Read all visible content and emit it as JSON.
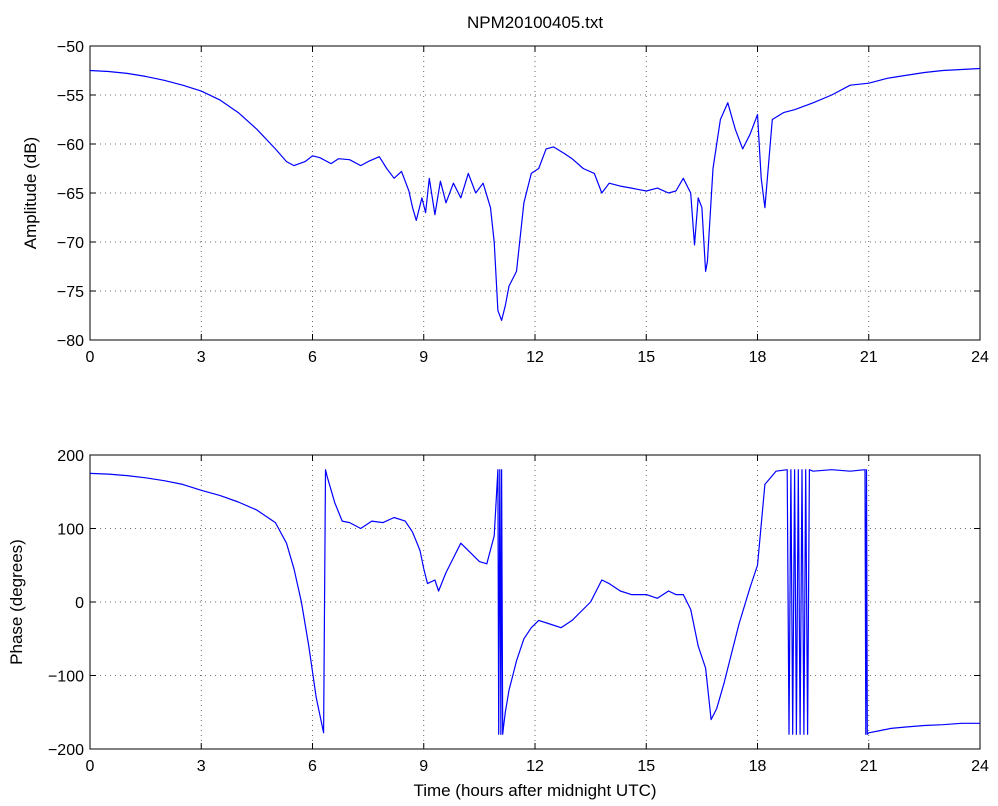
{
  "chart_data": [
    {
      "type": "line",
      "title": "NPM20100405.txt",
      "xlabel": "",
      "ylabel": "Amplitude (dB)",
      "xlim": [
        0,
        24
      ],
      "ylim": [
        -80,
        -50
      ],
      "xticks": [
        0,
        3,
        6,
        9,
        12,
        15,
        18,
        21,
        24
      ],
      "yticks": [
        -50,
        -55,
        -60,
        -65,
        -70,
        -75,
        -80
      ],
      "grid": true,
      "color": "#0000ff",
      "series": [
        {
          "x": [
            0,
            0.5,
            1,
            1.5,
            2,
            2.5,
            3,
            3.5,
            4,
            4.5,
            5,
            5.3,
            5.5,
            5.8,
            6.0,
            6.2,
            6.5,
            6.7,
            7.0,
            7.3,
            7.5,
            7.8,
            8.0,
            8.2,
            8.4,
            8.6,
            8.7,
            8.8,
            8.95,
            9.05,
            9.15,
            9.3,
            9.45,
            9.6,
            9.8,
            10.0,
            10.2,
            10.4,
            10.6,
            10.8,
            10.9,
            11.0,
            11.1,
            11.2,
            11.3,
            11.5,
            11.7,
            11.9,
            12.1,
            12.3,
            12.5,
            12.8,
            13.0,
            13.3,
            13.6,
            13.8,
            14.0,
            14.3,
            14.6,
            15.0,
            15.3,
            15.6,
            15.8,
            16.0,
            16.2,
            16.3,
            16.4,
            16.5,
            16.6,
            16.65,
            16.8,
            17.0,
            17.2,
            17.4,
            17.6,
            17.8,
            18.0,
            18.1,
            18.2,
            18.4,
            18.7,
            19.0,
            19.5,
            20.0,
            20.5,
            21.0,
            21.5,
            22.0,
            22.5,
            23.0,
            23.5,
            24.0
          ],
          "y": [
            -52.5,
            -52.6,
            -52.8,
            -53.1,
            -53.5,
            -54.0,
            -54.6,
            -55.5,
            -56.8,
            -58.5,
            -60.5,
            -61.8,
            -62.2,
            -61.8,
            -61.2,
            -61.4,
            -62.0,
            -61.5,
            -61.6,
            -62.2,
            -61.8,
            -61.3,
            -62.5,
            -63.5,
            -62.8,
            -64.8,
            -66.5,
            -67.8,
            -65.5,
            -67.0,
            -63.5,
            -67.2,
            -63.8,
            -66.0,
            -64.0,
            -65.5,
            -63.0,
            -65.0,
            -64.0,
            -66.5,
            -70.0,
            -77.0,
            -78.0,
            -76.5,
            -74.5,
            -73.0,
            -66.0,
            -63.0,
            -62.5,
            -60.5,
            -60.3,
            -61.0,
            -61.5,
            -62.5,
            -63.0,
            -65.0,
            -64.0,
            -64.3,
            -64.5,
            -64.8,
            -64.5,
            -65.0,
            -64.8,
            -63.5,
            -65.0,
            -70.3,
            -65.5,
            -66.5,
            -73.0,
            -72.0,
            -62.5,
            -57.5,
            -55.8,
            -58.5,
            -60.5,
            -59.0,
            -57.0,
            -63.5,
            -66.5,
            -57.5,
            -56.8,
            -56.5,
            -55.8,
            -55.0,
            -54.0,
            -53.8,
            -53.3,
            -53.0,
            -52.7,
            -52.5,
            -52.4,
            -52.3
          ]
        }
      ]
    },
    {
      "type": "line",
      "title": "",
      "xlabel": "Time (hours after midnight UTC)",
      "ylabel": "Phase (degrees)",
      "xlim": [
        0,
        24
      ],
      "ylim": [
        -200,
        200
      ],
      "xticks": [
        0,
        3,
        6,
        9,
        12,
        15,
        18,
        21,
        24
      ],
      "yticks": [
        200,
        100,
        0,
        -100,
        -200
      ],
      "grid": true,
      "color": "#0000ff",
      "series": [
        {
          "x": [
            0,
            0.5,
            1,
            1.5,
            2,
            2.5,
            3,
            3.5,
            4,
            4.5,
            5,
            5.3,
            5.5,
            5.7,
            5.9,
            6.1,
            6.3,
            6.35,
            6.4,
            6.6,
            6.8,
            7.0,
            7.3,
            7.6,
            7.9,
            8.2,
            8.5,
            8.7,
            8.9,
            9.0,
            9.1,
            9.3,
            9.4,
            9.6,
            9.8,
            10.0,
            10.3,
            10.5,
            10.7,
            10.9,
            11.0,
            11.02,
            11.05,
            11.08,
            11.1,
            11.13,
            11.15,
            11.2,
            11.3,
            11.4,
            11.5,
            11.7,
            11.9,
            12.1,
            12.4,
            12.7,
            13.0,
            13.2,
            13.5,
            13.8,
            14.0,
            14.3,
            14.6,
            15.0,
            15.3,
            15.6,
            15.8,
            16.0,
            16.2,
            16.4,
            16.6,
            16.75,
            16.9,
            17.1,
            17.3,
            17.5,
            17.8,
            18.0,
            18.2,
            18.5,
            18.8,
            18.85,
            18.9,
            18.95,
            19.0,
            19.05,
            19.1,
            19.15,
            19.2,
            19.25,
            19.3,
            19.35,
            19.4,
            19.5,
            20.0,
            20.5,
            20.9,
            20.92,
            20.94,
            20.96,
            21.0,
            21.3,
            21.6,
            22.0,
            22.5,
            23.0,
            23.5,
            24.0
          ],
          "y": [
            175,
            174,
            172,
            169,
            165,
            160,
            152,
            145,
            136,
            125,
            108,
            80,
            45,
            0,
            -60,
            -130,
            -178,
            180,
            170,
            135,
            110,
            108,
            100,
            110,
            108,
            115,
            110,
            95,
            70,
            45,
            25,
            30,
            15,
            40,
            60,
            80,
            65,
            55,
            52,
            90,
            180,
            -180,
            180,
            -180,
            180,
            -180,
            -170,
            -150,
            -120,
            -100,
            -80,
            -50,
            -35,
            -25,
            -30,
            -35,
            -25,
            -15,
            0,
            30,
            25,
            15,
            10,
            10,
            5,
            15,
            10,
            10,
            -10,
            -60,
            -90,
            -160,
            -145,
            -110,
            -70,
            -30,
            20,
            50,
            160,
            178,
            180,
            -180,
            180,
            -180,
            180,
            -180,
            180,
            -180,
            180,
            -180,
            180,
            -180,
            180,
            178,
            180,
            178,
            180,
            -180,
            180,
            -180,
            -178,
            -175,
            -172,
            -170,
            -168,
            -167,
            -165,
            -165
          ]
        }
      ]
    }
  ]
}
